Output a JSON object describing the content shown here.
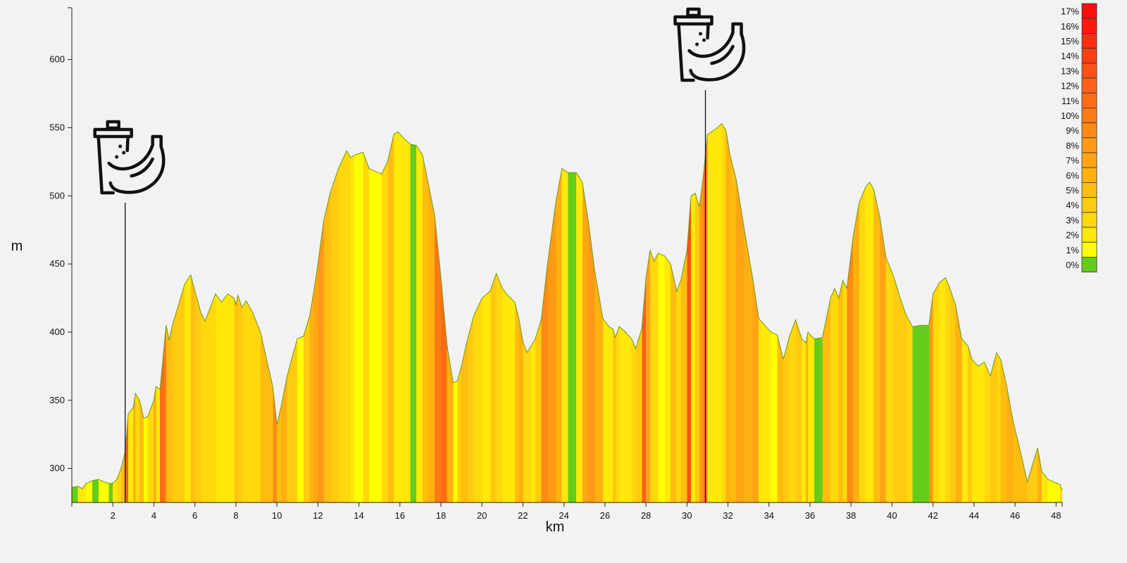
{
  "chart_data": {
    "type": "area",
    "xlabel": "km",
    "ylabel": "m",
    "xlim": [
      0,
      48.3
    ],
    "ylim": [
      275,
      638
    ],
    "x_ticks": [
      2,
      4,
      6,
      8,
      10,
      12,
      14,
      16,
      18,
      20,
      22,
      24,
      26,
      28,
      30,
      32,
      34,
      36,
      38,
      40,
      42,
      44,
      46,
      48
    ],
    "y_ticks": [
      300,
      350,
      400,
      450,
      500,
      550,
      600
    ],
    "profile": [
      [
        0,
        286
      ],
      [
        0.3,
        287
      ],
      [
        0.5,
        285
      ],
      [
        0.7,
        289
      ],
      [
        1.0,
        291
      ],
      [
        1.3,
        292
      ],
      [
        1.6,
        290
      ],
      [
        1.8,
        289
      ],
      [
        2.0,
        289
      ],
      [
        2.2,
        292
      ],
      [
        2.4,
        300
      ],
      [
        2.6,
        312
      ],
      [
        2.75,
        340
      ],
      [
        3.0,
        345
      ],
      [
        3.1,
        355
      ],
      [
        3.3,
        350
      ],
      [
        3.5,
        337
      ],
      [
        3.7,
        338
      ],
      [
        4.0,
        350
      ],
      [
        4.1,
        360
      ],
      [
        4.3,
        358
      ],
      [
        4.5,
        390
      ],
      [
        4.6,
        405
      ],
      [
        4.75,
        394
      ],
      [
        4.9,
        405
      ],
      [
        5.1,
        415
      ],
      [
        5.3,
        425
      ],
      [
        5.5,
        435
      ],
      [
        5.8,
        442
      ],
      [
        6.0,
        430
      ],
      [
        6.3,
        414
      ],
      [
        6.5,
        408
      ],
      [
        6.8,
        420
      ],
      [
        7.0,
        428
      ],
      [
        7.3,
        422
      ],
      [
        7.6,
        428
      ],
      [
        7.9,
        425
      ],
      [
        8.0,
        420
      ],
      [
        8.1,
        427
      ],
      [
        8.3,
        418
      ],
      [
        8.5,
        423
      ],
      [
        8.8,
        415
      ],
      [
        9.2,
        400
      ],
      [
        9.5,
        380
      ],
      [
        9.8,
        360
      ],
      [
        10.0,
        332
      ],
      [
        10.2,
        345
      ],
      [
        10.5,
        368
      ],
      [
        10.8,
        385
      ],
      [
        11.0,
        395
      ],
      [
        11.3,
        397
      ],
      [
        11.6,
        412
      ],
      [
        11.8,
        430
      ],
      [
        12.0,
        450
      ],
      [
        12.3,
        483
      ],
      [
        12.6,
        502
      ],
      [
        13.0,
        520
      ],
      [
        13.4,
        533
      ],
      [
        13.6,
        528
      ],
      [
        13.8,
        530
      ],
      [
        14.2,
        532
      ],
      [
        14.5,
        520
      ],
      [
        14.8,
        518
      ],
      [
        15.1,
        516
      ],
      [
        15.4,
        525
      ],
      [
        15.7,
        545
      ],
      [
        15.9,
        547
      ],
      [
        16.2,
        542
      ],
      [
        16.5,
        538
      ],
      [
        16.8,
        537
      ],
      [
        17.1,
        530
      ],
      [
        17.4,
        508
      ],
      [
        17.7,
        485
      ],
      [
        18.0,
        440
      ],
      [
        18.3,
        390
      ],
      [
        18.6,
        363
      ],
      [
        18.8,
        364
      ],
      [
        19.0,
        375
      ],
      [
        19.3,
        395
      ],
      [
        19.6,
        412
      ],
      [
        20.0,
        425
      ],
      [
        20.4,
        430
      ],
      [
        20.7,
        443
      ],
      [
        21.0,
        432
      ],
      [
        21.2,
        428
      ],
      [
        21.4,
        425
      ],
      [
        21.6,
        422
      ],
      [
        21.8,
        410
      ],
      [
        22.0,
        393
      ],
      [
        22.2,
        385
      ],
      [
        22.4,
        390
      ],
      [
        22.6,
        395
      ],
      [
        22.9,
        410
      ],
      [
        23.2,
        450
      ],
      [
        23.6,
        495
      ],
      [
        23.9,
        520
      ],
      [
        24.2,
        517
      ],
      [
        24.6,
        517
      ],
      [
        24.9,
        510
      ],
      [
        25.2,
        480
      ],
      [
        25.5,
        445
      ],
      [
        25.9,
        410
      ],
      [
        26.2,
        404
      ],
      [
        26.4,
        402
      ],
      [
        26.5,
        396
      ],
      [
        26.7,
        404
      ],
      [
        27.0,
        400
      ],
      [
        27.3,
        395
      ],
      [
        27.5,
        388
      ],
      [
        27.8,
        403
      ],
      [
        28.0,
        440
      ],
      [
        28.2,
        460
      ],
      [
        28.4,
        452
      ],
      [
        28.6,
        458
      ],
      [
        28.9,
        456
      ],
      [
        29.2,
        450
      ],
      [
        29.5,
        430
      ],
      [
        29.7,
        438
      ],
      [
        30.0,
        460
      ],
      [
        30.2,
        500
      ],
      [
        30.4,
        502
      ],
      [
        30.6,
        492
      ],
      [
        30.8,
        515
      ],
      [
        31.0,
        545
      ],
      [
        31.4,
        549
      ],
      [
        31.7,
        553
      ],
      [
        31.9,
        548
      ],
      [
        32.1,
        530
      ],
      [
        32.4,
        512
      ],
      [
        32.8,
        475
      ],
      [
        33.2,
        440
      ],
      [
        33.5,
        410
      ],
      [
        33.8,
        405
      ],
      [
        34.1,
        400
      ],
      [
        34.4,
        398
      ],
      [
        34.7,
        380
      ],
      [
        35.0,
        397
      ],
      [
        35.3,
        409
      ],
      [
        35.6,
        395
      ],
      [
        35.8,
        392
      ],
      [
        35.9,
        400
      ],
      [
        36.2,
        395
      ],
      [
        36.6,
        396
      ],
      [
        36.8,
        410
      ],
      [
        37.0,
        425
      ],
      [
        37.2,
        432
      ],
      [
        37.4,
        425
      ],
      [
        37.6,
        438
      ],
      [
        37.8,
        432
      ],
      [
        38.1,
        470
      ],
      [
        38.4,
        495
      ],
      [
        38.7,
        506
      ],
      [
        38.9,
        510
      ],
      [
        39.1,
        505
      ],
      [
        39.4,
        485
      ],
      [
        39.7,
        455
      ],
      [
        40.1,
        440
      ],
      [
        40.4,
        425
      ],
      [
        40.7,
        412
      ],
      [
        41.0,
        404
      ],
      [
        41.4,
        405
      ],
      [
        41.8,
        405
      ],
      [
        42.0,
        428
      ],
      [
        42.3,
        436
      ],
      [
        42.6,
        440
      ],
      [
        42.8,
        433
      ],
      [
        43.1,
        420
      ],
      [
        43.4,
        395
      ],
      [
        43.7,
        390
      ],
      [
        43.9,
        380
      ],
      [
        44.2,
        375
      ],
      [
        44.5,
        378
      ],
      [
        44.8,
        368
      ],
      [
        45.1,
        385
      ],
      [
        45.3,
        380
      ],
      [
        45.6,
        360
      ],
      [
        45.9,
        335
      ],
      [
        46.3,
        310
      ],
      [
        46.6,
        290
      ],
      [
        46.9,
        305
      ],
      [
        47.1,
        315
      ],
      [
        47.3,
        298
      ],
      [
        47.6,
        292
      ],
      [
        47.9,
        290
      ],
      [
        48.2,
        288
      ],
      [
        48.3,
        284
      ]
    ],
    "legend": [
      "17%",
      "16%",
      "15%",
      "14%",
      "13%",
      "12%",
      "11%",
      "10%",
      "9%",
      "8%",
      "7%",
      "6%",
      "5%",
      "4%",
      "3%",
      "2%",
      "1%",
      "0%"
    ],
    "legend_colors": [
      "#ff0d0d",
      "#ff1a10",
      "#ff2e12",
      "#ff3f14",
      "#ff5016",
      "#ff5f18",
      "#ff6c14",
      "#ff7a14",
      "#ff8a14",
      "#ff9a14",
      "#ffa514",
      "#ffb110",
      "#ffbd10",
      "#ffcb10",
      "#ffd80e",
      "#ffe80a",
      "#ffff00",
      "#66cc1a"
    ],
    "markers": [
      {
        "x": 2.6,
        "icon": "feed-station-icon"
      },
      {
        "x": 30.9,
        "icon": "feed-station-icon"
      }
    ]
  }
}
